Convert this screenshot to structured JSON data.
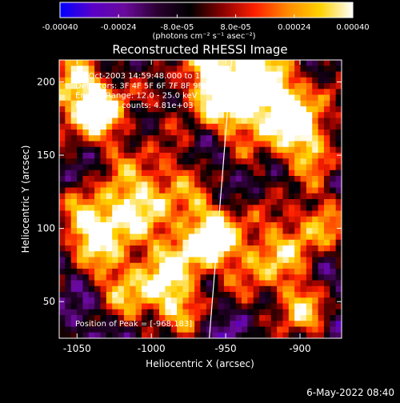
{
  "colorbar": {
    "tick_labels": [
      "-0.00040",
      "-0.00024",
      "-8.0e-05",
      "8.0e-05",
      "0.00024",
      "0.00040"
    ],
    "tick_values": [
      -0.0004,
      -0.00024,
      -8e-05,
      8e-05,
      0.00024,
      0.0004
    ],
    "range": [
      -0.0004,
      0.0004
    ],
    "units_label": "(photons cm⁻² s⁻¹ asec⁻²)",
    "colors": [
      "#0000ff",
      "#5a00c8",
      "#6a0a9a",
      "#2a0030",
      "#000000",
      "#8a0000",
      "#ff2000",
      "#ff8a00",
      "#ffd200",
      "#ffffff"
    ]
  },
  "chart_data": {
    "type": "heatmap",
    "title": "Reconstructed RHESSI Image",
    "xlabel": "Heliocentric X (arcsec)",
    "ylabel": "Heliocentric Y (arcsec)",
    "xlim": [
      -1062,
      -872
    ],
    "ylim": [
      25,
      215
    ],
    "x_ticks": [
      -1050,
      -1000,
      -950,
      -900
    ],
    "x_tick_labels": [
      "-1050",
      "-1000",
      "-950",
      "-900"
    ],
    "y_ticks": [
      50,
      100,
      150,
      200
    ],
    "y_tick_labels": [
      "50",
      "100",
      "150",
      "200"
    ],
    "limb_line": [
      [
        -961,
        25
      ],
      [
        -946,
        215
      ]
    ],
    "peak": [
      -968,
      183
    ],
    "annotations": [
      "17-Oct-2003 14:59:48.000 to 15:03:56.000",
      "Detectors: 3F 4F 5F 6F 7F 8F 9F 0",
      "Energy Range: 12.0 - 25.0 keV",
      "Clean    Total counts: 4.81e+03"
    ],
    "peak_label": "Position of Peak = [-968,183]"
  },
  "footer": {
    "timestamp": "6-May-2022 08:40"
  }
}
